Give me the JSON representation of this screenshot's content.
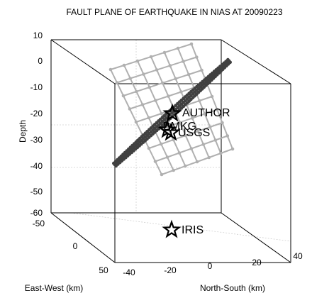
{
  "chart_data": {
    "type": "scatter",
    "title": "FAULT PLANE OF EARTHQUAKE IN NIAS AT 20090223",
    "axes": {
      "z": {
        "label": "Depth",
        "ticks": [
          "10",
          "0",
          "-10",
          "-20",
          "-30",
          "-40",
          "-50",
          "-60"
        ]
      },
      "x": {
        "label": "East-West (km)",
        "ticks": [
          "-50",
          "0",
          "50"
        ]
      },
      "y": {
        "label": "North-South (km)",
        "ticks": [
          "-40",
          "-20",
          "0",
          "20",
          "40"
        ]
      }
    },
    "grid": true,
    "series": [
      {
        "name": "gray grid plane",
        "color": "#b0b0b0",
        "kind": "grid-plane"
      },
      {
        "name": "dark plane (edge-on)",
        "color": "#404040",
        "kind": "line-of-points"
      }
    ],
    "markers": [
      {
        "label": "AUTHOR",
        "symbol": "star",
        "x_ew": 0,
        "y_ns": 0,
        "z": -18
      },
      {
        "label": "BMKG",
        "symbol": "star",
        "x_ew": 0,
        "y_ns": 0,
        "z": -24
      },
      {
        "label": "USGS",
        "symbol": "star",
        "x_ew": 0,
        "y_ns": 0,
        "z": -26
      },
      {
        "label": "IRIS",
        "symbol": "star",
        "x_ew": 0,
        "y_ns": -15,
        "z": -60
      }
    ]
  }
}
